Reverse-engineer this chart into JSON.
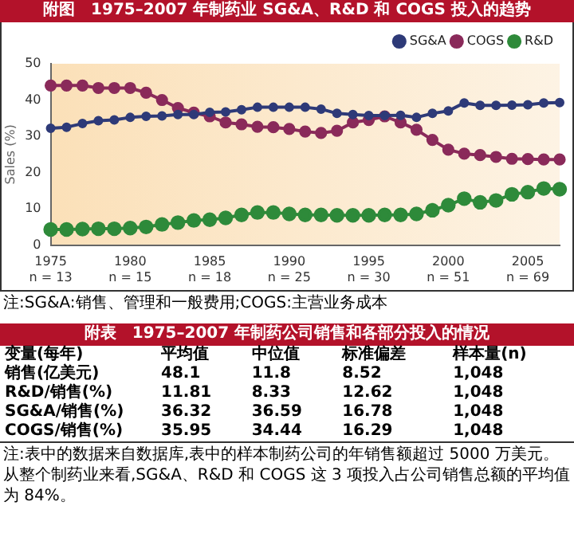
{
  "chart_data": {
    "type": "line",
    "title": "附图　1975–2007 年制药业 SG&A、R&D 和 COGS 投入的趋势",
    "ylabel": "Sales (%)",
    "categories": [
      "1975\nn = 13",
      null,
      null,
      null,
      null,
      "1980\nn = 15",
      null,
      null,
      null,
      null,
      "1985\nn = 18",
      null,
      null,
      null,
      null,
      "1990\nn = 25",
      null,
      null,
      null,
      null,
      "1995\nn = 30",
      null,
      null,
      null,
      null,
      "2000\nn = 51",
      null,
      null,
      null,
      null,
      "2005\nn = 69",
      null,
      null
    ],
    "series": [
      {
        "name": "SG&A",
        "color": "#2e3a78",
        "values": [
          32.2,
          32.5,
          33.5,
          34.3,
          34.5,
          35.2,
          35.5,
          35.6,
          36,
          36,
          36.6,
          36.7,
          37.3,
          38,
          38,
          38,
          38,
          37.5,
          36.3,
          36,
          35.7,
          35.7,
          35.8,
          35.2,
          36.3,
          37,
          39.2,
          38.5,
          38.5,
          38.6,
          38.7,
          39.2,
          39.3
        ]
      },
      {
        "name": "COGS",
        "color": "#8a2a5a",
        "values": [
          44,
          44,
          44,
          43.3,
          43.3,
          43.3,
          42,
          40,
          37.8,
          36.5,
          35.5,
          33.8,
          33.3,
          32.6,
          32.5,
          32,
          31.3,
          30.9,
          31.5,
          33.8,
          34.5,
          35.5,
          33.8,
          31.8,
          29,
          26.3,
          25.2,
          24.8,
          24.3,
          23.8,
          23.7,
          23.6,
          23.6
        ]
      },
      {
        "name": "R&D",
        "color": "#2e8a3a",
        "values": [
          4.3,
          4.3,
          4.4,
          4.5,
          4.5,
          4.7,
          5,
          5.7,
          6.2,
          6.8,
          7,
          7.5,
          8.3,
          9,
          9,
          8.6,
          8.3,
          8.3,
          8.2,
          8.2,
          8.2,
          8.3,
          8.3,
          8.6,
          9.6,
          11,
          12.8,
          11.8,
          12.3,
          14,
          14.6,
          15.6,
          15.4
        ]
      }
    ],
    "ylim": [
      0,
      50
    ],
    "yticks": [
      0,
      10,
      20,
      30,
      40,
      50
    ],
    "grid": false,
    "legend": "top right",
    "marker": "circle",
    "line_style": "solid",
    "annotations": [
      "注:SG&A:销售、管理和一般费用;COGS:主营业务成本",
      "附表　1975–2007 年制药公司销售和各部分投入的情况",
      "变量(每年)",
      "平均值",
      "中位值",
      "标准偏差",
      "样本量(n)",
      "销售(亿美元)",
      "48.1",
      "11.8",
      "8.52",
      "1,048",
      "R&D/销售(%)",
      "11.81",
      "8.33",
      "12.62",
      "1,048",
      "SG&A/销售(%)",
      "36.32",
      "36.59",
      "16.78",
      "1,048",
      "COGS/销售(%)",
      "35.95",
      "34.44",
      "16.29",
      "1,048",
      "注:表中的数据来自数据库,表中的样本制药公司的年销售额超过 5000 万美元。从整个制药业来看,SG&A、R&D 和 COGS 这 3 项投入占公司销售总额的平均值为 84%。"
    ]
  }
}
